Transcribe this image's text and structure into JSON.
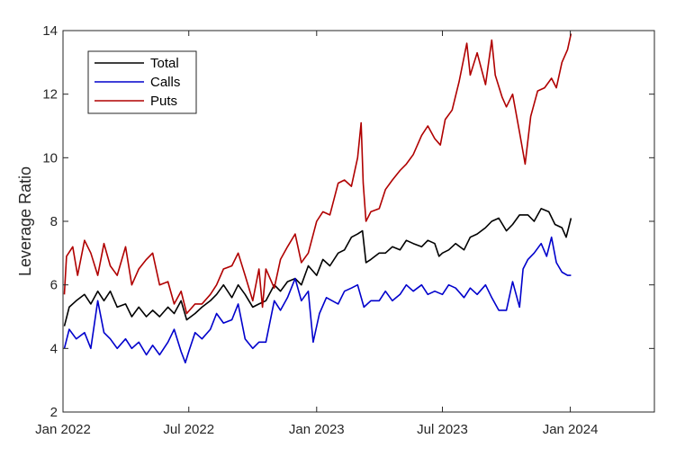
{
  "chart_data": {
    "type": "line",
    "title": "",
    "xlabel": "",
    "ylabel": "Leverage Ratio",
    "xlim": [
      "2022-01-01",
      "2024-05-01"
    ],
    "ylim": [
      2,
      14
    ],
    "x_ticks": [
      "2022-01-01",
      "2022-07-01",
      "2023-01-01",
      "2023-07-01",
      "2024-01-01"
    ],
    "x_tick_labels": [
      "Jan 2022",
      "Jul 2022",
      "Jan 2023",
      "Jul 2023",
      "Jan 2024"
    ],
    "y_ticks": [
      2,
      4,
      6,
      8,
      10,
      12,
      14
    ],
    "y_tick_labels": [
      "2",
      "4",
      "6",
      "8",
      "10",
      "12",
      "14"
    ],
    "grid": false,
    "legend_position": "top-left",
    "series": [
      {
        "name": "Total",
        "color": "#000000",
        "points": [
          [
            "2022-01-03",
            4.7
          ],
          [
            "2022-01-10",
            5.3
          ],
          [
            "2022-01-20",
            5.5
          ],
          [
            "2022-02-01",
            5.7
          ],
          [
            "2022-02-10",
            5.4
          ],
          [
            "2022-02-20",
            5.8
          ],
          [
            "2022-03-01",
            5.5
          ],
          [
            "2022-03-10",
            5.8
          ],
          [
            "2022-03-20",
            5.3
          ],
          [
            "2022-04-01",
            5.4
          ],
          [
            "2022-04-10",
            5.0
          ],
          [
            "2022-04-20",
            5.3
          ],
          [
            "2022-05-01",
            5.0
          ],
          [
            "2022-05-10",
            5.2
          ],
          [
            "2022-05-20",
            5.0
          ],
          [
            "2022-06-01",
            5.3
          ],
          [
            "2022-06-10",
            5.1
          ],
          [
            "2022-06-20",
            5.5
          ],
          [
            "2022-06-28",
            4.9
          ],
          [
            "2022-07-10",
            5.1
          ],
          [
            "2022-07-20",
            5.3
          ],
          [
            "2022-08-01",
            5.5
          ],
          [
            "2022-08-10",
            5.7
          ],
          [
            "2022-08-20",
            6.0
          ],
          [
            "2022-09-01",
            5.6
          ],
          [
            "2022-09-10",
            6.0
          ],
          [
            "2022-09-20",
            5.7
          ],
          [
            "2022-10-01",
            5.3
          ],
          [
            "2022-10-10",
            5.4
          ],
          [
            "2022-10-20",
            5.5
          ],
          [
            "2022-11-01",
            6.0
          ],
          [
            "2022-11-10",
            5.8
          ],
          [
            "2022-11-20",
            6.1
          ],
          [
            "2022-12-01",
            6.2
          ],
          [
            "2022-12-10",
            6.0
          ],
          [
            "2022-12-20",
            6.6
          ],
          [
            "2023-01-01",
            6.3
          ],
          [
            "2023-01-10",
            6.8
          ],
          [
            "2023-01-20",
            6.6
          ],
          [
            "2023-02-01",
            7.0
          ],
          [
            "2023-02-10",
            7.1
          ],
          [
            "2023-02-20",
            7.5
          ],
          [
            "2023-03-01",
            7.6
          ],
          [
            "2023-03-08",
            7.7
          ],
          [
            "2023-03-13",
            6.7
          ],
          [
            "2023-03-20",
            6.8
          ],
          [
            "2023-04-01",
            7.0
          ],
          [
            "2023-04-10",
            7.0
          ],
          [
            "2023-04-20",
            7.2
          ],
          [
            "2023-05-01",
            7.1
          ],
          [
            "2023-05-10",
            7.4
          ],
          [
            "2023-05-20",
            7.3
          ],
          [
            "2023-06-01",
            7.2
          ],
          [
            "2023-06-10",
            7.4
          ],
          [
            "2023-06-20",
            7.3
          ],
          [
            "2023-06-26",
            6.9
          ],
          [
            "2023-07-01",
            7.0
          ],
          [
            "2023-07-10",
            7.1
          ],
          [
            "2023-07-20",
            7.3
          ],
          [
            "2023-08-01",
            7.1
          ],
          [
            "2023-08-10",
            7.5
          ],
          [
            "2023-08-20",
            7.6
          ],
          [
            "2023-09-01",
            7.8
          ],
          [
            "2023-09-10",
            8.0
          ],
          [
            "2023-09-20",
            8.1
          ],
          [
            "2023-10-01",
            7.7
          ],
          [
            "2023-10-10",
            7.9
          ],
          [
            "2023-10-20",
            8.2
          ],
          [
            "2023-11-01",
            8.2
          ],
          [
            "2023-11-10",
            8.0
          ],
          [
            "2023-11-20",
            8.4
          ],
          [
            "2023-12-01",
            8.3
          ],
          [
            "2023-12-10",
            7.9
          ],
          [
            "2023-12-20",
            7.8
          ],
          [
            "2023-12-26",
            7.5
          ],
          [
            "2024-01-02",
            8.1
          ]
        ]
      },
      {
        "name": "Calls",
        "color": "#0000cc",
        "points": [
          [
            "2022-01-03",
            4.0
          ],
          [
            "2022-01-10",
            4.6
          ],
          [
            "2022-01-20",
            4.3
          ],
          [
            "2022-02-01",
            4.5
          ],
          [
            "2022-02-10",
            4.0
          ],
          [
            "2022-02-20",
            5.5
          ],
          [
            "2022-03-01",
            4.5
          ],
          [
            "2022-03-10",
            4.3
          ],
          [
            "2022-03-20",
            4.0
          ],
          [
            "2022-04-01",
            4.3
          ],
          [
            "2022-04-10",
            4.0
          ],
          [
            "2022-04-20",
            4.2
          ],
          [
            "2022-05-01",
            3.8
          ],
          [
            "2022-05-10",
            4.1
          ],
          [
            "2022-05-20",
            3.8
          ],
          [
            "2022-06-01",
            4.2
          ],
          [
            "2022-06-10",
            4.6
          ],
          [
            "2022-06-20",
            3.9
          ],
          [
            "2022-06-26",
            3.55
          ],
          [
            "2022-07-01",
            3.9
          ],
          [
            "2022-07-10",
            4.5
          ],
          [
            "2022-07-20",
            4.3
          ],
          [
            "2022-08-01",
            4.6
          ],
          [
            "2022-08-10",
            5.1
          ],
          [
            "2022-08-20",
            4.8
          ],
          [
            "2022-09-01",
            4.9
          ],
          [
            "2022-09-10",
            5.4
          ],
          [
            "2022-09-20",
            4.3
          ],
          [
            "2022-10-01",
            4.0
          ],
          [
            "2022-10-10",
            4.2
          ],
          [
            "2022-10-20",
            4.2
          ],
          [
            "2022-11-01",
            5.5
          ],
          [
            "2022-11-10",
            5.2
          ],
          [
            "2022-11-20",
            5.6
          ],
          [
            "2022-12-01",
            6.2
          ],
          [
            "2022-12-10",
            5.5
          ],
          [
            "2022-12-20",
            5.8
          ],
          [
            "2022-12-27",
            4.2
          ],
          [
            "2023-01-05",
            5.1
          ],
          [
            "2023-01-15",
            5.6
          ],
          [
            "2023-02-01",
            5.4
          ],
          [
            "2023-02-10",
            5.8
          ],
          [
            "2023-02-20",
            5.9
          ],
          [
            "2023-03-01",
            6.0
          ],
          [
            "2023-03-10",
            5.3
          ],
          [
            "2023-03-20",
            5.5
          ],
          [
            "2023-04-01",
            5.5
          ],
          [
            "2023-04-10",
            5.8
          ],
          [
            "2023-04-20",
            5.5
          ],
          [
            "2023-05-01",
            5.7
          ],
          [
            "2023-05-10",
            6.0
          ],
          [
            "2023-05-20",
            5.8
          ],
          [
            "2023-06-01",
            6.0
          ],
          [
            "2023-06-10",
            5.7
          ],
          [
            "2023-06-20",
            5.8
          ],
          [
            "2023-07-01",
            5.7
          ],
          [
            "2023-07-10",
            6.0
          ],
          [
            "2023-07-20",
            5.9
          ],
          [
            "2023-08-01",
            5.6
          ],
          [
            "2023-08-10",
            5.9
          ],
          [
            "2023-08-20",
            5.7
          ],
          [
            "2023-09-01",
            6.0
          ],
          [
            "2023-09-10",
            5.6
          ],
          [
            "2023-09-20",
            5.2
          ],
          [
            "2023-10-01",
            5.2
          ],
          [
            "2023-10-10",
            6.1
          ],
          [
            "2023-10-20",
            5.3
          ],
          [
            "2023-10-25",
            6.5
          ],
          [
            "2023-11-01",
            6.8
          ],
          [
            "2023-11-10",
            7.0
          ],
          [
            "2023-11-20",
            7.3
          ],
          [
            "2023-11-28",
            6.9
          ],
          [
            "2023-12-05",
            7.5
          ],
          [
            "2023-12-12",
            6.7
          ],
          [
            "2023-12-20",
            6.4
          ],
          [
            "2023-12-28",
            6.3
          ],
          [
            "2024-01-02",
            6.3
          ]
        ]
      },
      {
        "name": "Puts",
        "color": "#b00000",
        "points": [
          [
            "2022-01-03",
            5.7
          ],
          [
            "2022-01-06",
            6.9
          ],
          [
            "2022-01-15",
            7.2
          ],
          [
            "2022-01-22",
            6.3
          ],
          [
            "2022-02-01",
            7.4
          ],
          [
            "2022-02-10",
            7.0
          ],
          [
            "2022-02-20",
            6.3
          ],
          [
            "2022-03-01",
            7.3
          ],
          [
            "2022-03-10",
            6.6
          ],
          [
            "2022-03-20",
            6.3
          ],
          [
            "2022-04-01",
            7.2
          ],
          [
            "2022-04-10",
            6.0
          ],
          [
            "2022-04-20",
            6.5
          ],
          [
            "2022-05-01",
            6.8
          ],
          [
            "2022-05-10",
            7.0
          ],
          [
            "2022-05-20",
            6.0
          ],
          [
            "2022-06-01",
            6.1
          ],
          [
            "2022-06-10",
            5.4
          ],
          [
            "2022-06-20",
            5.8
          ],
          [
            "2022-06-28",
            5.1
          ],
          [
            "2022-07-10",
            5.4
          ],
          [
            "2022-07-20",
            5.4
          ],
          [
            "2022-08-01",
            5.7
          ],
          [
            "2022-08-10",
            6.0
          ],
          [
            "2022-08-20",
            6.5
          ],
          [
            "2022-09-01",
            6.6
          ],
          [
            "2022-09-10",
            7.0
          ],
          [
            "2022-09-20",
            6.3
          ],
          [
            "2022-10-01",
            5.5
          ],
          [
            "2022-10-10",
            6.5
          ],
          [
            "2022-10-15",
            5.3
          ],
          [
            "2022-10-20",
            6.5
          ],
          [
            "2022-11-01",
            5.9
          ],
          [
            "2022-11-10",
            6.8
          ],
          [
            "2022-11-20",
            7.2
          ],
          [
            "2022-12-01",
            7.6
          ],
          [
            "2022-12-10",
            6.7
          ],
          [
            "2022-12-20",
            7.0
          ],
          [
            "2023-01-01",
            8.0
          ],
          [
            "2023-01-10",
            8.3
          ],
          [
            "2023-01-20",
            8.2
          ],
          [
            "2023-02-01",
            9.2
          ],
          [
            "2023-02-10",
            9.3
          ],
          [
            "2023-02-20",
            9.1
          ],
          [
            "2023-03-01",
            10.0
          ],
          [
            "2023-03-06",
            11.1
          ],
          [
            "2023-03-09",
            9.2
          ],
          [
            "2023-03-13",
            8.0
          ],
          [
            "2023-03-20",
            8.3
          ],
          [
            "2023-04-01",
            8.4
          ],
          [
            "2023-04-10",
            9.0
          ],
          [
            "2023-04-20",
            9.3
          ],
          [
            "2023-05-01",
            9.6
          ],
          [
            "2023-05-10",
            9.8
          ],
          [
            "2023-05-20",
            10.1
          ],
          [
            "2023-06-01",
            10.7
          ],
          [
            "2023-06-10",
            11.0
          ],
          [
            "2023-06-20",
            10.6
          ],
          [
            "2023-06-28",
            10.4
          ],
          [
            "2023-07-05",
            11.2
          ],
          [
            "2023-07-15",
            11.5
          ],
          [
            "2023-07-25",
            12.4
          ],
          [
            "2023-08-05",
            13.6
          ],
          [
            "2023-08-10",
            12.6
          ],
          [
            "2023-08-20",
            13.3
          ],
          [
            "2023-09-01",
            12.3
          ],
          [
            "2023-09-10",
            13.7
          ],
          [
            "2023-09-15",
            12.6
          ],
          [
            "2023-09-25",
            11.9
          ],
          [
            "2023-10-01",
            11.6
          ],
          [
            "2023-10-10",
            12.0
          ],
          [
            "2023-10-20",
            10.8
          ],
          [
            "2023-10-28",
            9.8
          ],
          [
            "2023-11-05",
            11.3
          ],
          [
            "2023-11-15",
            12.1
          ],
          [
            "2023-11-25",
            12.2
          ],
          [
            "2023-12-05",
            12.5
          ],
          [
            "2023-12-12",
            12.2
          ],
          [
            "2023-12-20",
            13.0
          ],
          [
            "2023-12-28",
            13.4
          ],
          [
            "2024-01-02",
            13.9
          ]
        ]
      }
    ]
  }
}
